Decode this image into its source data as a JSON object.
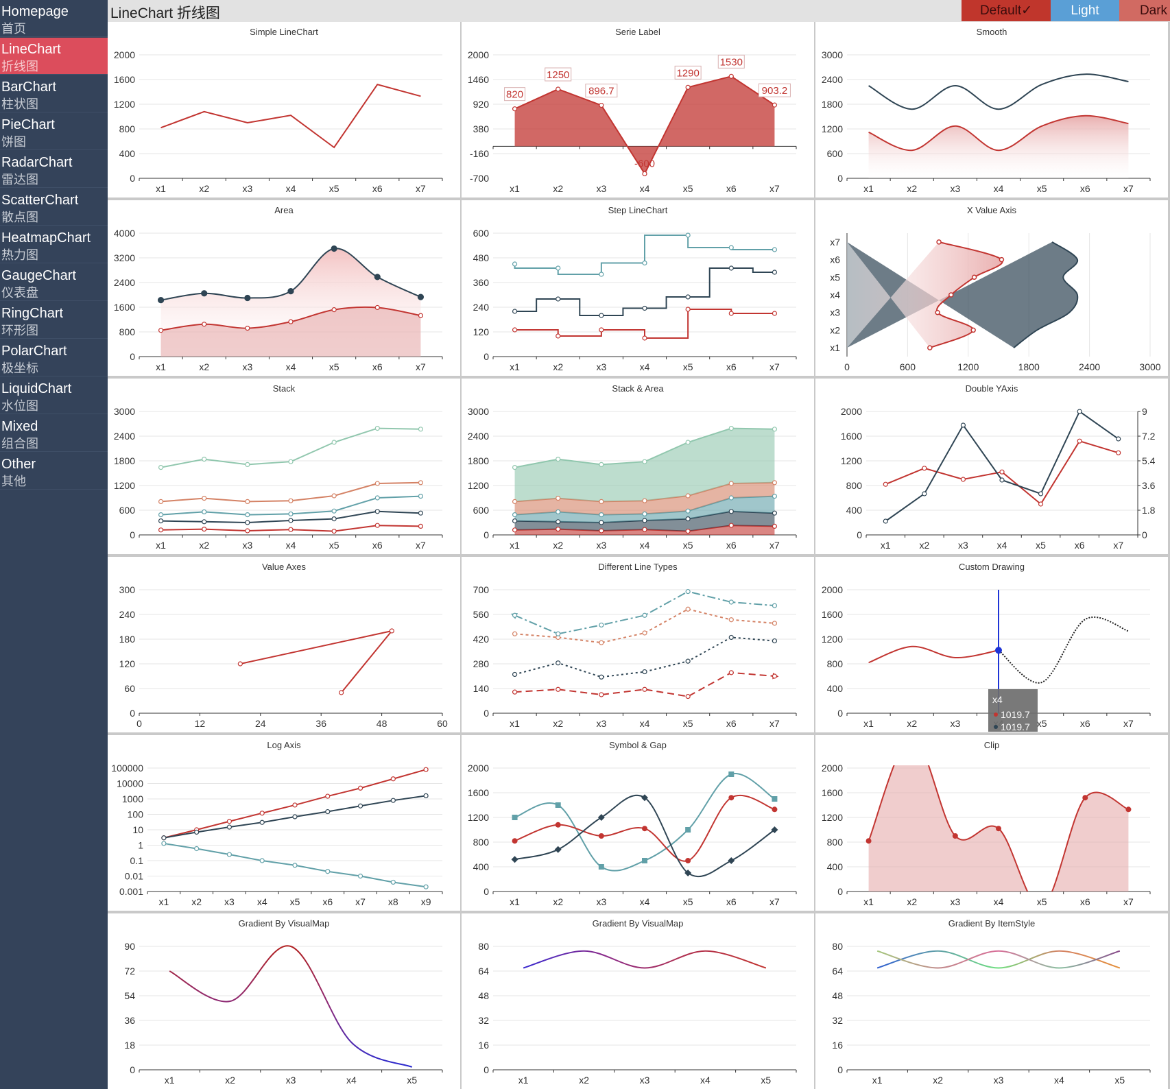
{
  "sidebar": {
    "items": [
      {
        "en": "Homepage",
        "cn": "首页"
      },
      {
        "en": "LineChart",
        "cn": "折线图"
      },
      {
        "en": "BarChart",
        "cn": "柱状图"
      },
      {
        "en": "PieChart",
        "cn": "饼图"
      },
      {
        "en": "RadarChart",
        "cn": "雷达图"
      },
      {
        "en": "ScatterChart",
        "cn": "散点图"
      },
      {
        "en": "HeatmapChart",
        "cn": "热力图"
      },
      {
        "en": "GaugeChart",
        "cn": "仪表盘"
      },
      {
        "en": "RingChart",
        "cn": "环形图"
      },
      {
        "en": "PolarChart",
        "cn": "极坐标"
      },
      {
        "en": "LiquidChart",
        "cn": "水位图"
      },
      {
        "en": "Mixed",
        "cn": "组合图"
      },
      {
        "en": "Other",
        "cn": "其他"
      }
    ],
    "active_index": 1
  },
  "header": {
    "title": "LineChart 折线图"
  },
  "themes": [
    {
      "label": "Default✓",
      "color": "#c0362c",
      "text": "#3a0c0c"
    },
    {
      "label": "Light",
      "color": "#5a9fd6",
      "text": "#ffffff"
    },
    {
      "label": "Dark",
      "color": "#d16a62",
      "text": "#3a0c0c"
    }
  ],
  "colors": {
    "red": "#c23531",
    "navy": "#2f4554",
    "teal": "#61a0a8",
    "orange": "#d48265",
    "green": "#91c7ae"
  },
  "chart_data": [
    {
      "title": "Simple LineChart",
      "type": "line",
      "categories": [
        "x1",
        "x2",
        "x3",
        "x4",
        "x5",
        "x6",
        "x7"
      ],
      "ylim": [
        0,
        2000
      ],
      "yticks": [
        "0",
        "400",
        "800",
        "1200",
        "1600",
        "2000"
      ],
      "series": [
        {
          "values": [
            820,
            1080,
            900,
            1020,
            500,
            1520,
            1330
          ],
          "color": "red",
          "symbols": false
        }
      ]
    },
    {
      "title": "Serie Label",
      "type": "area",
      "categories": [
        "x1",
        "x2",
        "x3",
        "x4",
        "x5",
        "x6",
        "x7"
      ],
      "ylim": [
        -700,
        2000
      ],
      "yticks": [
        "-700",
        "-160",
        "380",
        "920",
        "1460",
        "2000"
      ],
      "series": [
        {
          "values": [
            820,
            1250,
            896.7,
            -600,
            1290,
            1530,
            903.2
          ],
          "color": "red",
          "fill": "solid",
          "labels": [
            "820",
            "1250",
            "896.7",
            "-600",
            "1290",
            "1530",
            "903.2"
          ]
        }
      ]
    },
    {
      "title": "Smooth",
      "type": "line",
      "smooth": true,
      "categories": [
        "x1",
        "x2",
        "x3",
        "x4",
        "x5",
        "x6",
        "x7"
      ],
      "ylim": [
        0,
        3000
      ],
      "yticks": [
        "0",
        "600",
        "1200",
        "1800",
        "2400",
        "3000"
      ],
      "series": [
        {
          "values": [
            2250,
            1680,
            2250,
            1680,
            2280,
            2530,
            2350
          ],
          "color": "navy",
          "symbols": false
        },
        {
          "values": [
            1120,
            680,
            1270,
            680,
            1270,
            1520,
            1330
          ],
          "color": "red",
          "symbols": false,
          "fill": "gradient"
        }
      ]
    },
    {
      "title": "Area",
      "type": "area",
      "smooth": true,
      "categories": [
        "x1",
        "x2",
        "x3",
        "x4",
        "x5",
        "x6",
        "x7"
      ],
      "ylim": [
        0,
        4000
      ],
      "yticks": [
        "0",
        "800",
        "1600",
        "2400",
        "3200",
        "4000"
      ],
      "series": [
        {
          "values": [
            1830,
            2050,
            1900,
            2120,
            3500,
            2580,
            1930
          ],
          "color": "navy",
          "fill": "gradient-pink"
        },
        {
          "values": [
            850,
            1050,
            920,
            1130,
            1520,
            1590,
            1330
          ],
          "color": "red",
          "fill": "solid-pink"
        }
      ]
    },
    {
      "title": "Step LineChart",
      "type": "line",
      "step": true,
      "categories": [
        "x1",
        "x2",
        "x3",
        "x4",
        "x5",
        "x6",
        "x7"
      ],
      "ylim": [
        0,
        600
      ],
      "yticks": [
        "0",
        "120",
        "240",
        "360",
        "480",
        "600"
      ],
      "series": [
        {
          "values": [
            450,
            430,
            400,
            455,
            590,
            530,
            520
          ],
          "color": "teal",
          "stepmode": "start"
        },
        {
          "values": [
            220,
            280,
            200,
            235,
            290,
            430,
            410
          ],
          "color": "navy",
          "stepmode": "mid"
        },
        {
          "values": [
            130,
            100,
            130,
            90,
            230,
            210,
            210
          ],
          "color": "red",
          "stepmode": "end"
        }
      ]
    },
    {
      "title": "X Value Axis",
      "type": "area",
      "orientation": "horizontal",
      "categories": [
        "x1",
        "x2",
        "x3",
        "x4",
        "x5",
        "x6",
        "x7"
      ],
      "xlim": [
        0,
        3000
      ],
      "xticks": [
        "0",
        "600",
        "1200",
        "1800",
        "2400",
        "3000"
      ],
      "series": [
        {
          "values": [
            1650,
            1880,
            2200,
            2280,
            2140,
            2280,
            2030
          ],
          "color": "navy",
          "fill": "solid",
          "symbols": false
        },
        {
          "values": [
            820,
            1250,
            896.7,
            1030,
            1260,
            1530,
            910
          ],
          "color": "red",
          "fill": "gradient-left"
        }
      ]
    },
    {
      "title": "Stack",
      "type": "line",
      "stacked": true,
      "categories": [
        "x1",
        "x2",
        "x3",
        "x4",
        "x5",
        "x6",
        "x7"
      ],
      "ylim": [
        0,
        3000
      ],
      "yticks": [
        "0",
        "600",
        "1200",
        "1800",
        "2400",
        "3000"
      ],
      "series": [
        {
          "values": [
            120,
            140,
            100,
            130,
            90,
            230,
            210
          ],
          "color": "red"
        },
        {
          "values": [
            220,
            180,
            200,
            220,
            300,
            340,
            320
          ],
          "color": "navy"
        },
        {
          "values": [
            150,
            240,
            190,
            160,
            190,
            330,
            410
          ],
          "color": "teal"
        },
        {
          "values": [
            320,
            330,
            320,
            320,
            370,
            350,
            330
          ],
          "color": "orange"
        },
        {
          "values": [
            830,
            950,
            900,
            950,
            1300,
            1340,
            1300
          ],
          "color": "green"
        }
      ]
    },
    {
      "title": "Stack & Area",
      "type": "area",
      "stacked": true,
      "categories": [
        "x1",
        "x2",
        "x3",
        "x4",
        "x5",
        "x6",
        "x7"
      ],
      "ylim": [
        0,
        3000
      ],
      "yticks": [
        "0",
        "600",
        "1200",
        "1800",
        "2400",
        "3000"
      ],
      "series": [
        {
          "values": [
            120,
            140,
            100,
            130,
            90,
            230,
            210
          ],
          "color": "red"
        },
        {
          "values": [
            220,
            180,
            200,
            220,
            300,
            340,
            320
          ],
          "color": "navy"
        },
        {
          "values": [
            150,
            240,
            190,
            160,
            190,
            330,
            410
          ],
          "color": "teal"
        },
        {
          "values": [
            320,
            330,
            320,
            320,
            370,
            350,
            330
          ],
          "color": "orange"
        },
        {
          "values": [
            830,
            950,
            900,
            950,
            1300,
            1340,
            1300
          ],
          "color": "green"
        }
      ]
    },
    {
      "title": "Double YAxis",
      "type": "line",
      "categories": [
        "x1",
        "x2",
        "x3",
        "x4",
        "x5",
        "x6",
        "x7"
      ],
      "ylim": [
        0,
        2000
      ],
      "yticks": [
        "0",
        "400",
        "800",
        "1200",
        "1600",
        "2000"
      ],
      "y2lim": [
        0,
        9
      ],
      "y2ticks": [
        "0",
        "1.8",
        "3.6",
        "5.4",
        "7.2",
        "9"
      ],
      "series": [
        {
          "values": [
            820,
            1080,
            900,
            1020,
            500,
            1520,
            1330
          ],
          "color": "red"
        },
        {
          "values": [
            1.0,
            3.0,
            8.0,
            4.0,
            3.0,
            9.0,
            7.0
          ],
          "color": "navy",
          "axis": 2
        }
      ]
    },
    {
      "title": "Value Axes",
      "type": "line",
      "xlim": [
        0,
        60
      ],
      "xticks": [
        "0",
        "12",
        "24",
        "36",
        "48",
        "60"
      ],
      "ylim": [
        0,
        300
      ],
      "yticks": [
        "0",
        "60",
        "120",
        "180",
        "240",
        "300"
      ],
      "series": [
        {
          "points": [
            [
              20,
              120
            ],
            [
              50,
              200
            ],
            [
              40,
              50
            ]
          ],
          "color": "red"
        }
      ]
    },
    {
      "title": "Different Line Types",
      "type": "line",
      "categories": [
        "x1",
        "x2",
        "x3",
        "x4",
        "x5",
        "x6",
        "x7"
      ],
      "ylim": [
        0,
        700
      ],
      "yticks": [
        "0",
        "140",
        "280",
        "420",
        "560",
        "700"
      ],
      "series": [
        {
          "values": [
            120,
            135,
            105,
            135,
            95,
            230,
            210
          ],
          "color": "red",
          "dash": "10,6",
          "arrow": "end"
        },
        {
          "values": [
            220,
            285,
            205,
            235,
            295,
            430,
            410
          ],
          "color": "navy",
          "dash": "3,4"
        },
        {
          "values": [
            450,
            430,
            400,
            455,
            590,
            530,
            510
          ],
          "color": "orange",
          "dash": "4,4"
        },
        {
          "values": [
            555,
            450,
            500,
            555,
            690,
            630,
            610
          ],
          "color": "teal",
          "dash": "12,4,3,4",
          "arrow": "start"
        }
      ]
    },
    {
      "title": "Custom Drawing",
      "type": "line",
      "smooth": true,
      "categories": [
        "x1",
        "x2",
        "x3",
        "x4",
        "x5",
        "x6",
        "x7"
      ],
      "ylim": [
        0,
        2000
      ],
      "yticks": [
        "0",
        "400",
        "800",
        "1200",
        "1600",
        "2000"
      ],
      "series": [
        {
          "values": [
            820,
            1080,
            900,
            1019.7,
            500,
            1520,
            1330
          ],
          "color": "red",
          "symbols": false,
          "dotted_from": 3
        }
      ],
      "tooltip": {
        "category": "x4",
        "rows": [
          "1019.7",
          "1019.7"
        ]
      }
    },
    {
      "title": "Log Axis",
      "type": "line",
      "log": true,
      "categories": [
        "x1",
        "x2",
        "x3",
        "x4",
        "x5",
        "x6",
        "x7",
        "x8",
        "x9"
      ],
      "yticks": [
        "0.001",
        "0.01",
        "0.1",
        "1",
        "10",
        "100",
        "1000",
        "10000",
        "100000"
      ],
      "series": [
        {
          "values": [
            3,
            10,
            35,
            120,
            400,
            1500,
            5000,
            20000,
            80000
          ],
          "color": "red"
        },
        {
          "values": [
            3,
            7,
            15,
            30,
            70,
            150,
            350,
            800,
            1600
          ],
          "color": "navy"
        },
        {
          "values": [
            1.3,
            0.6,
            0.25,
            0.1,
            0.05,
            0.02,
            0.01,
            0.004,
            0.002
          ],
          "color": "teal"
        }
      ]
    },
    {
      "title": "Symbol & Gap",
      "type": "line",
      "smooth": true,
      "categories": [
        "x1",
        "x2",
        "x3",
        "x4",
        "x5",
        "x6",
        "x7"
      ],
      "ylim": [
        0,
        2000
      ],
      "yticks": [
        "0",
        "400",
        "800",
        "1200",
        "1600",
        "2000"
      ],
      "series": [
        {
          "values": [
            1200,
            1400,
            400,
            500,
            1000,
            1900,
            1500
          ],
          "color": "teal",
          "symbol": "square"
        },
        {
          "values": [
            820,
            1080,
            900,
            1020,
            500,
            1520,
            1330
          ],
          "color": "red",
          "symbol": "circle"
        },
        {
          "values": [
            520,
            680,
            1200,
            1520,
            300,
            500,
            1000
          ],
          "color": "navy",
          "symbol": "diamond"
        }
      ]
    },
    {
      "title": "Clip",
      "type": "area",
      "smooth": true,
      "clip": true,
      "categories": [
        "x1",
        "x2",
        "x3",
        "x4",
        "x5",
        "x6",
        "x7"
      ],
      "ylim": [
        0,
        2000
      ],
      "yticks": [
        "0",
        "400",
        "800",
        "1200",
        "1600",
        "2000"
      ],
      "series": [
        {
          "values": [
            820,
            2500,
            900,
            1020,
            -250,
            1520,
            1330
          ],
          "color": "red",
          "fill": "solid-pink",
          "symbolidx": [
            0,
            2,
            3,
            5,
            6
          ]
        }
      ]
    },
    {
      "title": "Gradient By VisualMap",
      "type": "line",
      "smooth": true,
      "categories": [
        "x1",
        "x2",
        "x3",
        "x4",
        "x5"
      ],
      "ylim": [
        0,
        90
      ],
      "yticks": [
        "0",
        "18",
        "36",
        "54",
        "72",
        "90"
      ],
      "series": [
        {
          "values": [
            72,
            50,
            90,
            20,
            2
          ],
          "color": "gradient-purple",
          "symbols": false
        }
      ]
    },
    {
      "title": "Gradient By VisualMap",
      "type": "line",
      "smooth": true,
      "categories": [
        "x1",
        "x2",
        "x3",
        "x4",
        "x5"
      ],
      "ylim": [
        0,
        80
      ],
      "yticks": [
        "0",
        "16",
        "32",
        "48",
        "64",
        "80"
      ],
      "series": [
        {
          "values": [
            66,
            77,
            66,
            77,
            66
          ],
          "color": "gradient-purple-h",
          "symbols": false
        }
      ]
    },
    {
      "title": "Gradient By ItemStyle",
      "type": "line",
      "smooth": true,
      "categories": [
        "x1",
        "x2",
        "x3",
        "x4",
        "x5"
      ],
      "ylim": [
        0,
        80
      ],
      "yticks": [
        "0",
        "16",
        "32",
        "48",
        "64",
        "80"
      ],
      "series": [
        {
          "values": [
            66,
            77,
            66,
            77,
            66
          ],
          "color": "gradient-multi-a",
          "symbols": false
        },
        {
          "values": [
            77,
            66,
            77,
            66,
            77
          ],
          "color": "gradient-multi-b",
          "symbols": false
        }
      ]
    }
  ]
}
